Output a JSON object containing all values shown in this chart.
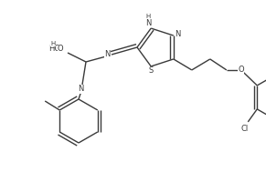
{
  "figsize": [
    2.91,
    2.0
  ],
  "dpi": 100,
  "bg_color": "#ffffff",
  "line_color": "#3a3a3a",
  "lw": 1.0,
  "fs": 6.0,
  "xlim": [
    0,
    291
  ],
  "ylim": [
    0,
    200
  ]
}
